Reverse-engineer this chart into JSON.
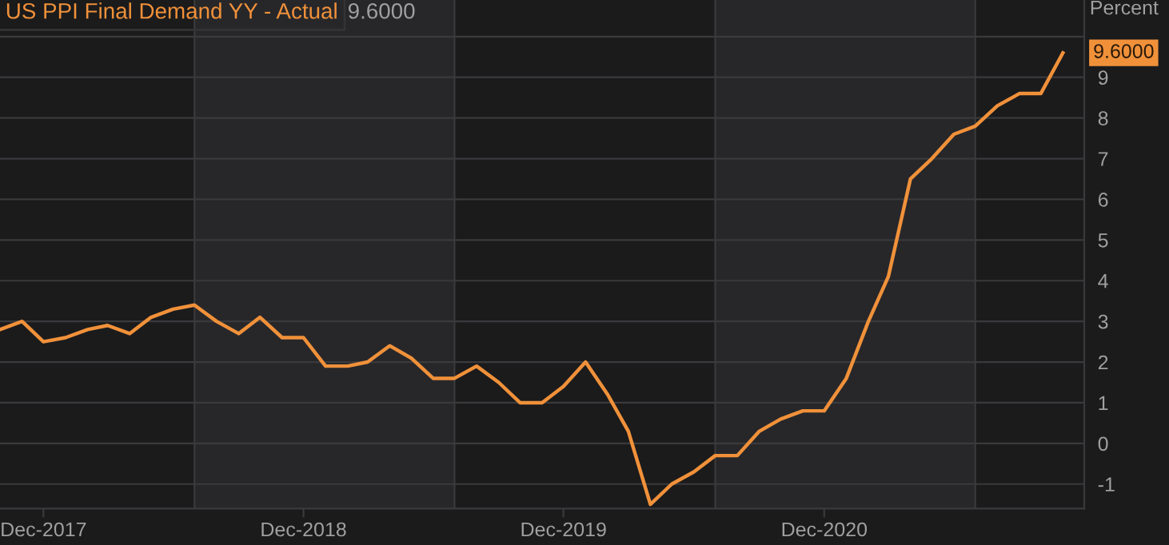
{
  "chart_data": {
    "type": "line",
    "ylabel": "Percent",
    "legend": "top left",
    "x": [
      "2017-10",
      "2017-11",
      "2017-12",
      "2018-01",
      "2018-02",
      "2018-03",
      "2018-04",
      "2018-05",
      "2018-06",
      "2018-07",
      "2018-08",
      "2018-09",
      "2018-10",
      "2018-11",
      "2018-12",
      "2019-01",
      "2019-02",
      "2019-03",
      "2019-04",
      "2019-05",
      "2019-06",
      "2019-07",
      "2019-08",
      "2019-09",
      "2019-10",
      "2019-11",
      "2019-12",
      "2020-01",
      "2020-02",
      "2020-03",
      "2020-04",
      "2020-05",
      "2020-06",
      "2020-07",
      "2020-08",
      "2020-09",
      "2020-10",
      "2020-11",
      "2020-12",
      "2021-01",
      "2021-02",
      "2021-03",
      "2021-04",
      "2021-05",
      "2021-06",
      "2021-07",
      "2021-08",
      "2021-09",
      "2021-10",
      "2021-11"
    ],
    "series": [
      {
        "name": "US PPI Final Demand YY - Actual",
        "color": "#f0913a",
        "values": [
          2.8,
          3.0,
          2.5,
          2.6,
          2.8,
          2.9,
          2.7,
          3.1,
          3.3,
          3.4,
          3.0,
          2.7,
          3.1,
          2.6,
          2.6,
          1.9,
          1.9,
          2.0,
          2.4,
          2.1,
          1.6,
          1.6,
          1.9,
          1.5,
          1.0,
          1.0,
          1.4,
          2.0,
          1.2,
          0.3,
          -1.5,
          -1.0,
          -0.7,
          -0.3,
          -0.3,
          0.3,
          0.6,
          0.8,
          0.8,
          1.6,
          3.0,
          4.1,
          6.5,
          7.0,
          7.6,
          7.8,
          8.3,
          8.6,
          8.6,
          9.6
        ],
        "value_labels": [
          null,
          null,
          null,
          null,
          null,
          null,
          null,
          null,
          null,
          null,
          null,
          null,
          null,
          null,
          null,
          null,
          null,
          null,
          null,
          null,
          null,
          null,
          null,
          null,
          null,
          null,
          null,
          null,
          null,
          null,
          null,
          null,
          null,
          null,
          null,
          null,
          null,
          null,
          null,
          null,
          null,
          null,
          null,
          null,
          null,
          null,
          null,
          null,
          null,
          "9.6000"
        ]
      }
    ],
    "annotations": [
      "9.6000"
    ],
    "xlim": [
      "2017-10",
      "2021-12"
    ],
    "xticks": [
      {
        "value": "2017-12",
        "label": "Dec-2017"
      },
      {
        "value": "2018-12",
        "label": "Dec-2018"
      },
      {
        "value": "2019-12",
        "label": "Dec-2019"
      },
      {
        "value": "2020-12",
        "label": "Dec-2020"
      }
    ],
    "ylim": [
      -1.6,
      10.9
    ],
    "yticks": [
      -1,
      0,
      1,
      2,
      3,
      4,
      5,
      6,
      7,
      8,
      9,
      {
        "value": 10,
        "label": null
      }
    ],
    "grid": "y",
    "bands": [
      {
        "axis": "x",
        "from": "2018-07",
        "to": "2019-07",
        "color": "#27272a"
      },
      {
        "axis": "x",
        "from": "2020-07",
        "to": "2021-07",
        "color": "#27272a"
      }
    ]
  }
}
